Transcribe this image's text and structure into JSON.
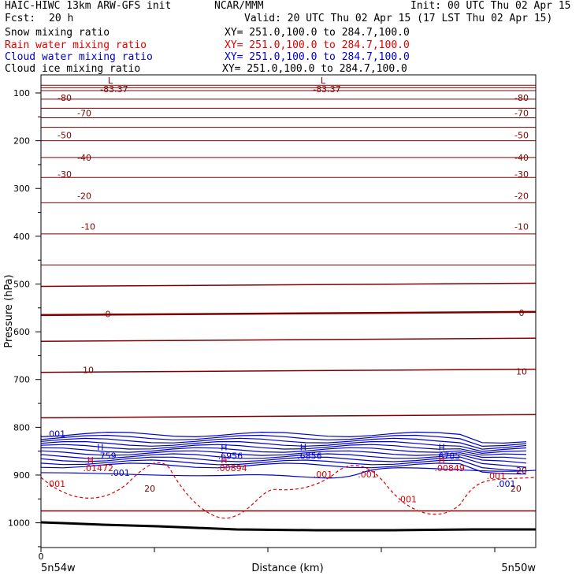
{
  "header": {
    "title": "HAIC-HIWC 13km ARW-GFS init",
    "org": "NCAR/MMM",
    "init": "Init: 00 UTC Thu 02 Apr 15",
    "fcst_label": "Fcst:",
    "fcst_value": "20 h",
    "valid": "Valid: 20 UTC Thu 02 Apr 15 (17 LST Thu 02 Apr 15)"
  },
  "fields": [
    {
      "name": "Snow mixing ratio",
      "xy": "XY= 251.0,100.0 to 284.7,100.0",
      "color": "#000000"
    },
    {
      "name": "Rain water mixing ratio",
      "xy": "XY= 251.0,100.0 to 284.7,100.0",
      "color": "#e00000"
    },
    {
      "name": "Cloud water mixing ratio",
      "xy": "XY= 251.0,100.0 to 284.7,100.0",
      "color": "#0000d0"
    },
    {
      "name": "Cloud ice mixing ratio",
      "xy": "XY= 251.0,100.0 to 284.7,100.0",
      "color": "#000000"
    }
  ],
  "colors": {
    "temperature": "#800000",
    "rain": "#e00000",
    "cloud_water": "#0000d0",
    "terrain": "#000000"
  },
  "chart_data": {
    "type": "line",
    "xlabel": "Distance (km)",
    "ylabel": "Pressure (hPa)",
    "x_tick_label": "0",
    "x_start_label": "5n54w",
    "x_end_label": "5n50w",
    "y_ticks": [
      "100",
      "200",
      "300",
      "400",
      "500",
      "600",
      "700",
      "800",
      "900",
      "1000"
    ],
    "ylim": [
      1050,
      75
    ],
    "temperature_labels_left": [
      "-80",
      "-70",
      "-50",
      "-40",
      "-30",
      "-20",
      "-10",
      "0",
      "10"
    ],
    "temperature_labels_right": [
      "-80",
      "-70",
      "-50",
      "-40",
      "-30",
      "-20",
      "-10",
      "0",
      "10",
      "20"
    ],
    "isotherms": [
      {
        "p": 84
      },
      {
        "p": 89
      },
      {
        "p": 95
      },
      {
        "p": 113
      },
      {
        "p": 132
      },
      {
        "p": 152
      },
      {
        "p": 172
      },
      {
        "p": 200
      },
      {
        "p": 235
      },
      {
        "p": 277
      },
      {
        "p": 330
      },
      {
        "p": 395
      },
      {
        "p": 460
      },
      {
        "p": 505
      },
      {
        "p": 565
      },
      {
        "p": 620
      },
      {
        "p": 685
      },
      {
        "p": 780
      },
      {
        "p": 975
      }
    ],
    "min_labels": [
      {
        "mark": "L",
        "value": "-83.37",
        "x_frac": 0.14
      },
      {
        "mark": "L",
        "value": "-83.37",
        "x_frac": 0.57
      }
    ],
    "cloud_water_max": [
      {
        "mark": "H",
        "value": ".759",
        "x_frac": 0.12
      },
      {
        "mark": "H",
        "value": ".6956",
        "x_frac": 0.37
      },
      {
        "mark": "H",
        "value": ".6856",
        "x_frac": 0.53
      },
      {
        "mark": "H",
        "value": ".6785",
        "x_frac": 0.81
      }
    ],
    "rain_max": [
      {
        "mark": "H",
        "value": ".01472",
        "x_frac": 0.1
      },
      {
        "mark": "H",
        "value": ".00894",
        "x_frac": 0.37
      },
      {
        "mark": "H",
        "value": ".00849",
        "x_frac": 0.81
      }
    ],
    "cloud_water_labels": [
      ".001",
      ".001",
      ".001"
    ],
    "rain_labels": [
      ".001",
      ".001",
      ".001",
      ".001",
      ".001"
    ],
    "temp_20_labels": [
      "20",
      "20"
    ]
  }
}
